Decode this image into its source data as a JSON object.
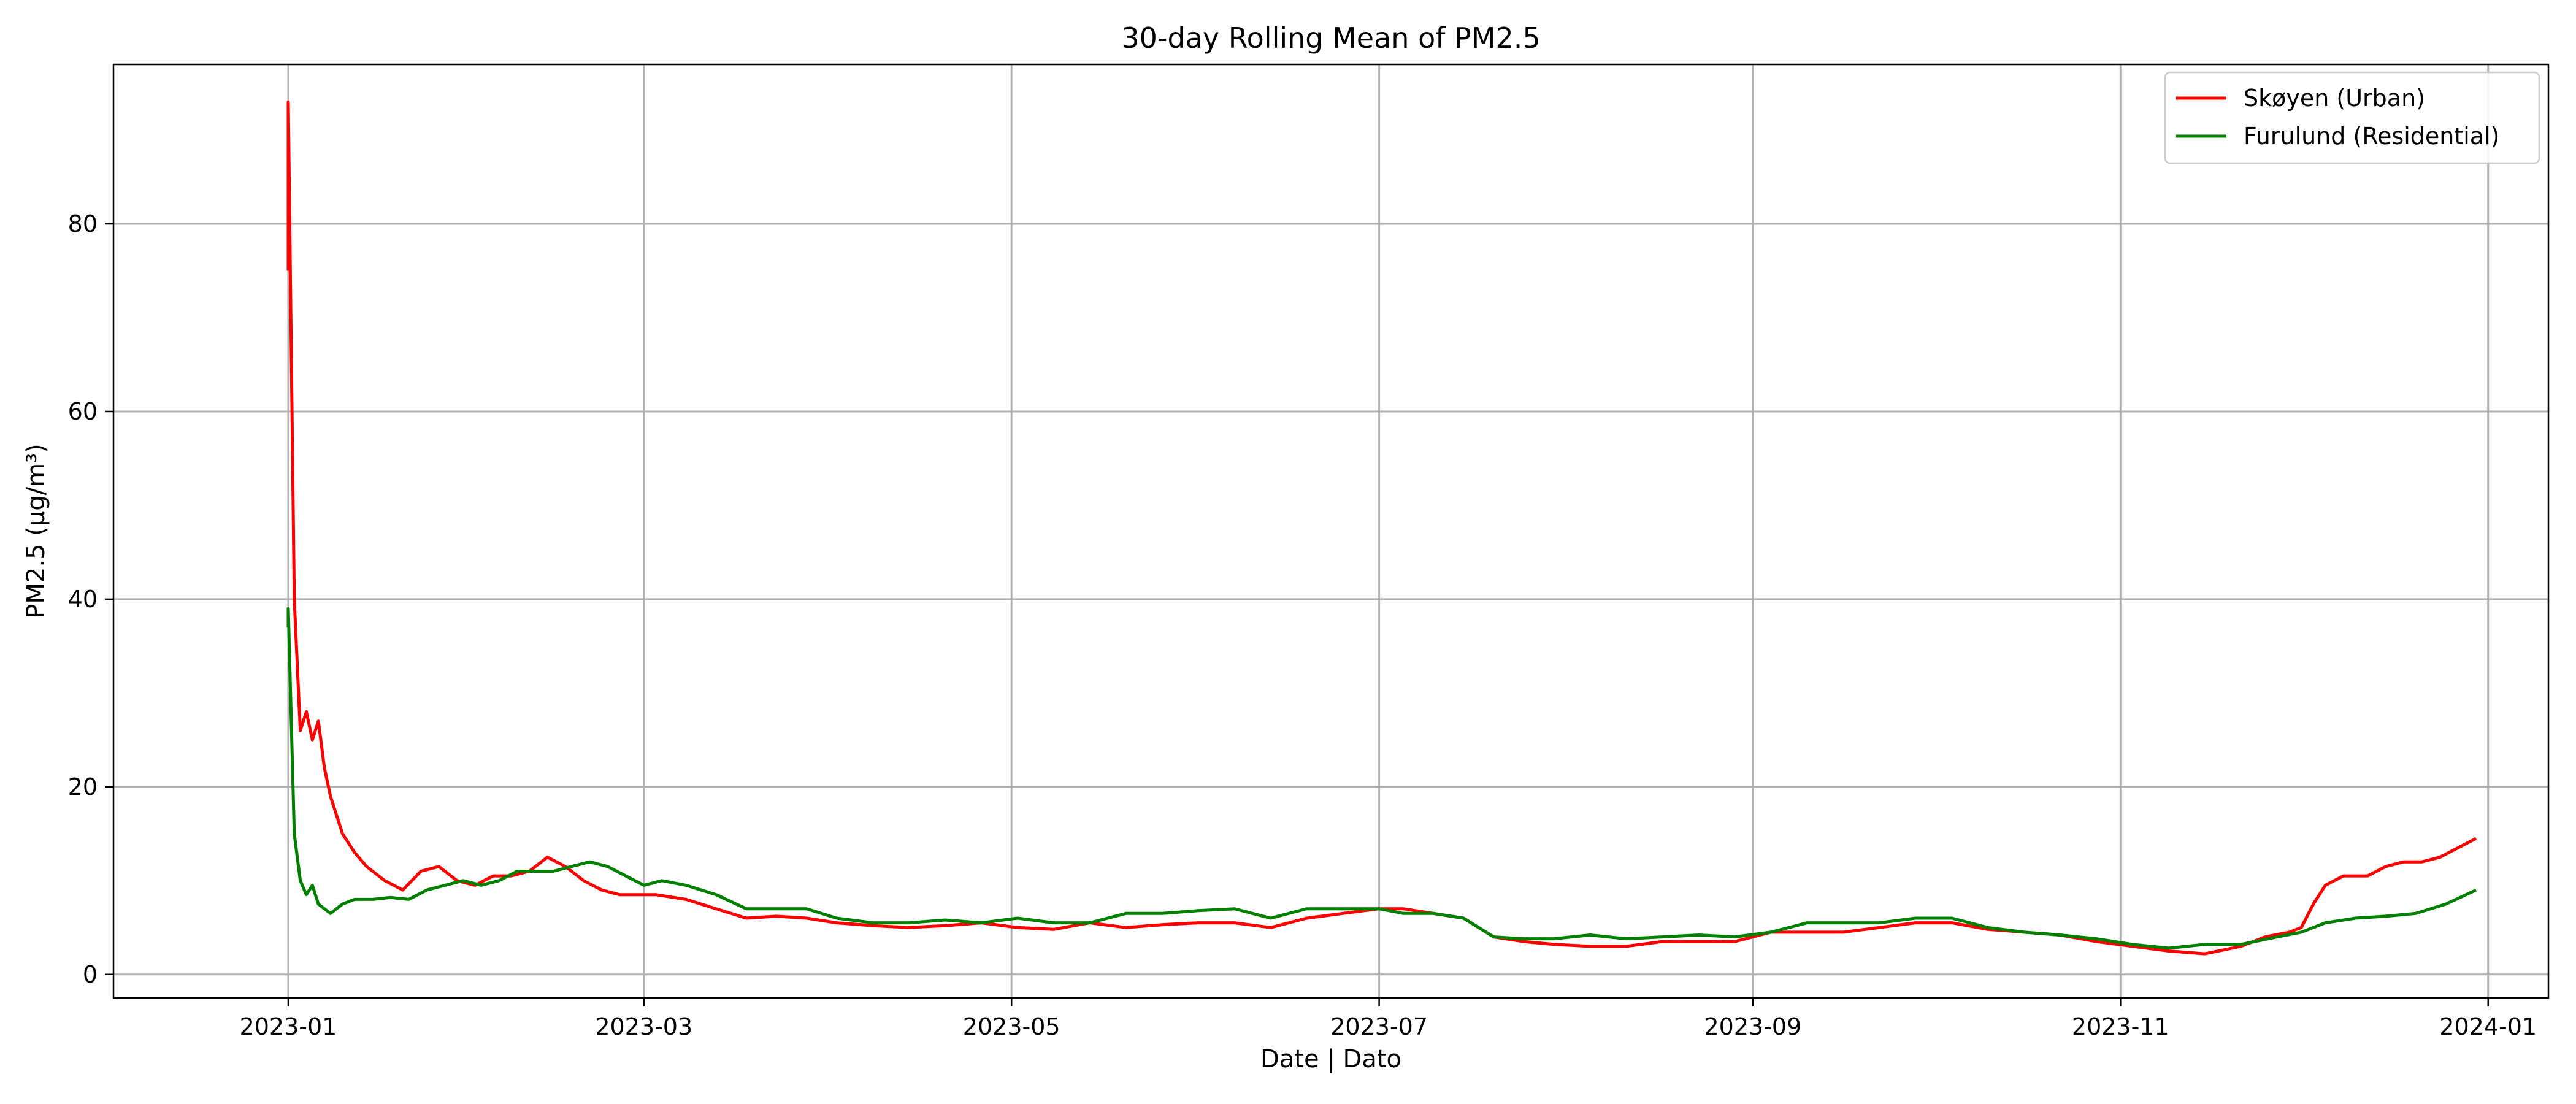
{
  "chart_data": {
    "type": "line",
    "title": "30-day Rolling Mean of PM2.5",
    "xlabel": "Date | Dato",
    "ylabel": "PM2.5 (μg/m³)",
    "x_ticks": [
      "2023-01",
      "2023-03",
      "2023-05",
      "2023-07",
      "2023-09",
      "2023-11",
      "2024-01"
    ],
    "y_ticks": [
      0,
      20,
      40,
      60,
      80
    ],
    "xlim": [
      "2022-12-03",
      "2024-01-11"
    ],
    "ylim": [
      -2.5,
      97
    ],
    "grid": true,
    "legend_position": "top-right",
    "series": [
      {
        "name": "Skøyen (Urban)",
        "color": "#ff0000",
        "x": [
          "2023-01-01",
          "2023-01-01",
          "2023-01-02",
          "2023-01-03",
          "2023-01-04",
          "2023-01-05",
          "2023-01-06",
          "2023-01-07",
          "2023-01-08",
          "2023-01-10",
          "2023-01-12",
          "2023-01-14",
          "2023-01-17",
          "2023-01-20",
          "2023-01-23",
          "2023-01-26",
          "2023-01-29",
          "2023-02-01",
          "2023-02-04",
          "2023-02-07",
          "2023-02-10",
          "2023-02-13",
          "2023-02-16",
          "2023-02-19",
          "2023-02-22",
          "2023-02-25",
          "2023-02-28",
          "2023-03-03",
          "2023-03-08",
          "2023-03-13",
          "2023-03-18",
          "2023-03-23",
          "2023-03-28",
          "2023-04-02",
          "2023-04-08",
          "2023-04-14",
          "2023-04-20",
          "2023-04-26",
          "2023-05-02",
          "2023-05-08",
          "2023-05-14",
          "2023-05-20",
          "2023-05-26",
          "2023-06-01",
          "2023-06-07",
          "2023-06-13",
          "2023-06-19",
          "2023-06-25",
          "2023-07-01",
          "2023-07-05",
          "2023-07-10",
          "2023-07-15",
          "2023-07-20",
          "2023-07-25",
          "2023-07-30",
          "2023-08-05",
          "2023-08-11",
          "2023-08-17",
          "2023-08-23",
          "2023-08-29",
          "2023-09-04",
          "2023-09-10",
          "2023-09-16",
          "2023-09-22",
          "2023-09-28",
          "2023-10-04",
          "2023-10-10",
          "2023-10-16",
          "2023-10-22",
          "2023-10-28",
          "2023-11-03",
          "2023-11-09",
          "2023-11-15",
          "2023-11-21",
          "2023-11-25",
          "2023-11-29",
          "2023-12-01",
          "2023-12-03",
          "2023-12-05",
          "2023-12-08",
          "2023-12-12",
          "2023-12-15",
          "2023-12-18",
          "2023-12-21",
          "2023-12-24",
          "2023-12-27",
          "2023-12-30"
        ],
        "y": [
          75,
          93,
          40,
          26,
          28,
          25,
          27,
          22,
          19,
          15,
          13,
          11.5,
          10,
          9,
          11,
          11.5,
          10,
          9.5,
          10.5,
          10.5,
          11,
          12.5,
          11.5,
          10,
          9,
          8.5,
          8.5,
          8.5,
          8,
          7,
          6,
          6.2,
          6,
          5.5,
          5.2,
          5,
          5.2,
          5.5,
          5,
          4.8,
          5.5,
          5,
          5.3,
          5.5,
          5.5,
          5,
          6,
          6.5,
          7,
          7,
          6.5,
          6,
          4,
          3.5,
          3.2,
          3,
          3,
          3.5,
          3.5,
          3.5,
          4.5,
          4.5,
          4.5,
          5,
          5.5,
          5.5,
          4.8,
          4.5,
          4.2,
          3.5,
          3,
          2.5,
          2.2,
          3,
          4,
          4.5,
          5,
          7.5,
          9.5,
          10.5,
          10.5,
          11.5,
          12,
          12,
          12.5,
          13.5,
          14.5
        ]
      },
      {
        "name": "Furulund (Residential)",
        "color": "#008000",
        "x": [
          "2023-01-01",
          "2023-01-01",
          "2023-01-02",
          "2023-01-03",
          "2023-01-04",
          "2023-01-05",
          "2023-01-06",
          "2023-01-08",
          "2023-01-10",
          "2023-01-12",
          "2023-01-15",
          "2023-01-18",
          "2023-01-21",
          "2023-01-24",
          "2023-01-27",
          "2023-01-30",
          "2023-02-02",
          "2023-02-05",
          "2023-02-08",
          "2023-02-11",
          "2023-02-14",
          "2023-02-17",
          "2023-02-20",
          "2023-02-23",
          "2023-02-26",
          "2023-03-01",
          "2023-03-04",
          "2023-03-08",
          "2023-03-13",
          "2023-03-18",
          "2023-03-23",
          "2023-03-28",
          "2023-04-02",
          "2023-04-08",
          "2023-04-14",
          "2023-04-20",
          "2023-04-26",
          "2023-05-02",
          "2023-05-08",
          "2023-05-14",
          "2023-05-20",
          "2023-05-26",
          "2023-06-01",
          "2023-06-07",
          "2023-06-13",
          "2023-06-19",
          "2023-06-25",
          "2023-07-01",
          "2023-07-05",
          "2023-07-10",
          "2023-07-15",
          "2023-07-20",
          "2023-07-25",
          "2023-07-30",
          "2023-08-05",
          "2023-08-11",
          "2023-08-17",
          "2023-08-23",
          "2023-08-29",
          "2023-09-04",
          "2023-09-10",
          "2023-09-16",
          "2023-09-22",
          "2023-09-28",
          "2023-10-04",
          "2023-10-10",
          "2023-10-16",
          "2023-10-22",
          "2023-10-28",
          "2023-11-03",
          "2023-11-09",
          "2023-11-15",
          "2023-11-21",
          "2023-11-27",
          "2023-12-01",
          "2023-12-05",
          "2023-12-10",
          "2023-12-15",
          "2023-12-20",
          "2023-12-25",
          "2023-12-30"
        ],
        "y": [
          37,
          39,
          15,
          10,
          8.5,
          9.5,
          7.5,
          6.5,
          7.5,
          8,
          8,
          8.2,
          8,
          9,
          9.5,
          10,
          9.5,
          10,
          11,
          11,
          11,
          11.5,
          12,
          11.5,
          10.5,
          9.5,
          10,
          9.5,
          8.5,
          7,
          7,
          7,
          6,
          5.5,
          5.5,
          5.8,
          5.5,
          6,
          5.5,
          5.5,
          6.5,
          6.5,
          6.8,
          7,
          6,
          7,
          7,
          7,
          6.5,
          6.5,
          6,
          4,
          3.8,
          3.8,
          4.2,
          3.8,
          4,
          4.2,
          4,
          4.5,
          5.5,
          5.5,
          5.5,
          6,
          6,
          5,
          4.5,
          4.2,
          3.8,
          3.2,
          2.8,
          3.2,
          3.2,
          4,
          4.5,
          5.5,
          6,
          6.2,
          6.5,
          7.5,
          9
        ]
      }
    ]
  }
}
